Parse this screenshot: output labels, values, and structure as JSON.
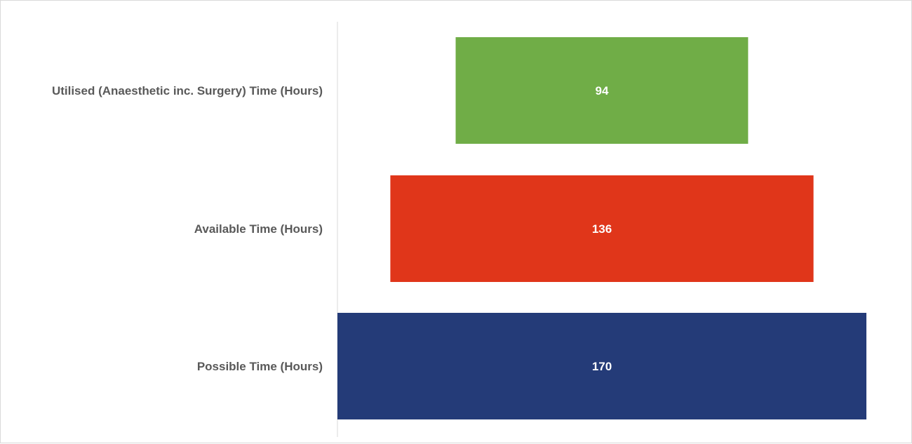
{
  "chart_data": {
    "type": "bar",
    "orientation": "horizontal-funnel",
    "title": "",
    "xlabel": "",
    "ylabel": "",
    "grid": false,
    "legend": "none",
    "categories": [
      "Utilised (Anaesthetic inc. Surgery) Time (Hours)",
      "Available Time (Hours)",
      "Possible Time (Hours)"
    ],
    "values": [
      94,
      136,
      170
    ],
    "colors": [
      "#70ad47",
      "#e0361a",
      "#243b78"
    ]
  }
}
